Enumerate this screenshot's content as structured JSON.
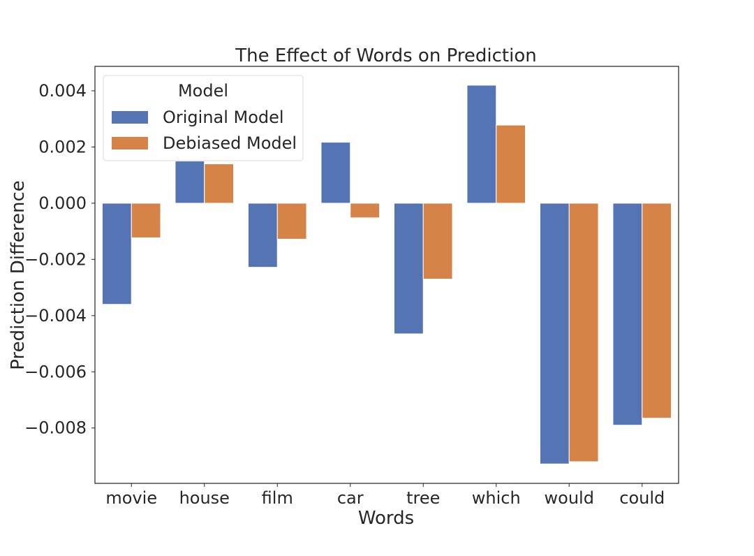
{
  "chart_data": {
    "type": "bar",
    "title": "The Effect of Words on Prediction",
    "xlabel": "Words",
    "ylabel": "Prediction Difference",
    "categories": [
      "movie",
      "house",
      "film",
      "car",
      "tree",
      "which",
      "would",
      "could"
    ],
    "series": [
      {
        "name": "Original Model",
        "color": "#5574b4",
        "values": [
          -0.0036,
          0.0015,
          -0.00228,
          0.00217,
          -0.00465,
          0.0042,
          -0.00928,
          -0.0079
        ]
      },
      {
        "name": "Debiased Model",
        "color": "#d68347",
        "values": [
          -0.00123,
          0.0014,
          -0.00128,
          -0.00052,
          -0.0027,
          0.00278,
          -0.0092,
          -0.00765
        ]
      }
    ],
    "ylim": [
      -0.00997,
      0.00487
    ],
    "yticks": [
      0.004,
      0.002,
      0.0,
      -0.002,
      -0.004,
      -0.006,
      -0.008
    ],
    "ytick_labels": [
      "0.004",
      "0.002",
      "0.000",
      "−0.002",
      "−0.004",
      "−0.006",
      "−0.008"
    ],
    "legend": {
      "title": "Model",
      "position": "upper-left"
    },
    "grid": false
  }
}
